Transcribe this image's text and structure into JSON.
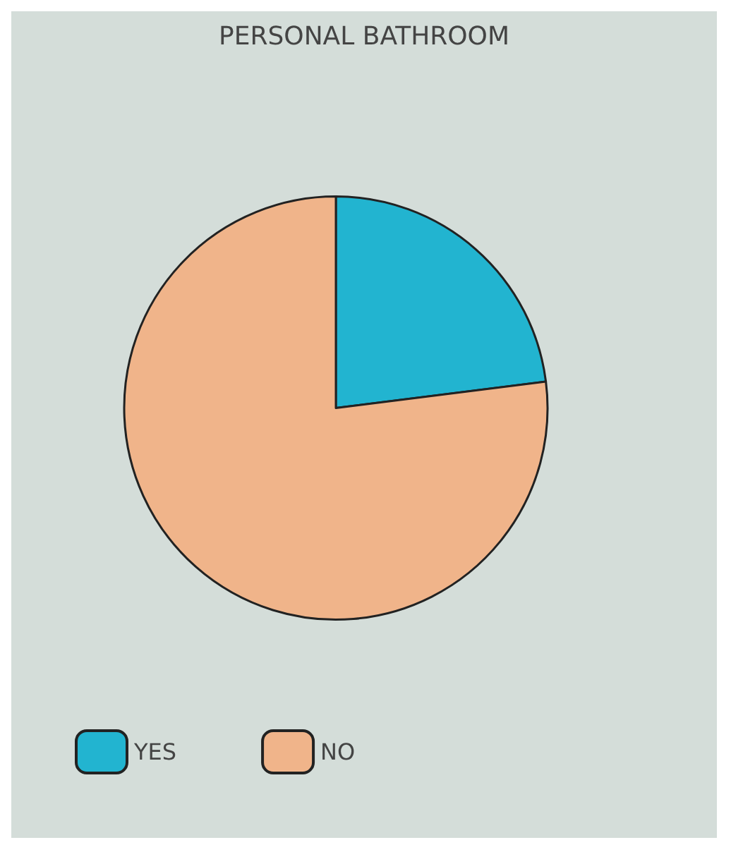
{
  "chart_data": {
    "type": "pie",
    "title": "PERSONAL BATHROOM",
    "categories": [
      "YES",
      "NO"
    ],
    "values": [
      23,
      77
    ],
    "colors": [
      "#22b4d0",
      "#f0b48a"
    ],
    "legend": "bottom left"
  }
}
